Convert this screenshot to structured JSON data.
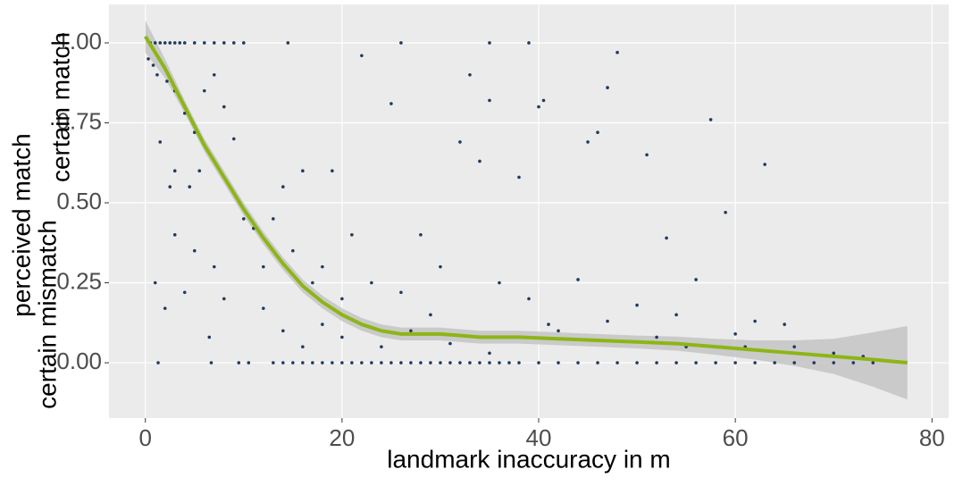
{
  "chart_data": {
    "type": "scatter",
    "x_label": "landmark inaccuracy in m",
    "y_label": "perceived match",
    "y_annotations": [
      "certain match",
      "certain mismatch"
    ],
    "color": "#1f3a5c",
    "xlim": [
      -3.7,
      81.7
    ],
    "ylim": [
      -0.173,
      1.12
    ],
    "xticks": [
      0,
      20,
      40,
      60,
      80
    ],
    "yticks": [
      {
        "value": 0,
        "label": "0.00"
      },
      {
        "value": 0.25,
        "label": "0.25"
      },
      {
        "value": 0.5,
        "label": "0.50"
      },
      {
        "value": 0.75,
        "label": "0.75"
      },
      {
        "value": 1,
        "label": "1.00"
      }
    ],
    "grid": true,
    "x": [
      1.3,
      6.7,
      9.5,
      10.5,
      13,
      14,
      15,
      16,
      17,
      18,
      19,
      20,
      21,
      22,
      23,
      24,
      25,
      26,
      27,
      28,
      29,
      30,
      31,
      32,
      33,
      34,
      35,
      36,
      37,
      38,
      40,
      42,
      44,
      46,
      48,
      50,
      52,
      54,
      56,
      58,
      60,
      62,
      64,
      66,
      68,
      70,
      72,
      74,
      0.5,
      1,
      1.5,
      2,
      2.5,
      3,
      3.5,
      4,
      5,
      6,
      7,
      8,
      9,
      10,
      14.5,
      26,
      35,
      39,
      0.3,
      0.8,
      1.2,
      2.2,
      3,
      4,
      5,
      5.5,
      6,
      7,
      8,
      9,
      3,
      4.5,
      2.5,
      5,
      7,
      8,
      6.5,
      10,
      11,
      12,
      13,
      14,
      15,
      16,
      17,
      18,
      19,
      20,
      21,
      22,
      23,
      25,
      26,
      28,
      29,
      30,
      32,
      33,
      34,
      35,
      36,
      38,
      39,
      40,
      40.5,
      42,
      44,
      45,
      46,
      47,
      48,
      50,
      51,
      53,
      54,
      56,
      57.5,
      59,
      61,
      62,
      63,
      65,
      1,
      1.5,
      2,
      4,
      3,
      12,
      14,
      16,
      18,
      20,
      24,
      27,
      31,
      35,
      41,
      47,
      52,
      55,
      60,
      66,
      70,
      73
    ],
    "values": [
      0,
      0,
      0,
      0,
      0,
      0,
      0,
      0,
      0,
      0,
      0,
      0,
      0,
      0,
      0,
      0,
      0,
      0,
      0,
      0,
      0,
      0,
      0,
      0,
      0,
      0,
      0,
      0,
      0,
      0,
      0,
      0,
      0,
      0,
      0,
      0,
      0,
      0,
      0,
      0,
      0,
      0,
      0,
      0,
      0,
      0,
      0,
      0,
      1,
      1,
      1,
      1,
      1,
      1,
      1,
      1,
      1,
      1,
      1,
      1,
      1,
      1,
      1,
      1,
      1,
      1,
      0.95,
      0.93,
      0.9,
      0.88,
      0.85,
      0.78,
      0.72,
      0.6,
      0.85,
      0.9,
      0.8,
      0.7,
      0.6,
      0.55,
      0.55,
      0.35,
      0.3,
      0.2,
      0.08,
      0.45,
      0.42,
      0.3,
      0.45,
      0.55,
      0.35,
      0.6,
      0.25,
      0.3,
      0.6,
      0.2,
      0.4,
      0.96,
      0.25,
      0.81,
      0.22,
      0.4,
      0.15,
      0.3,
      0.69,
      0.9,
      0.63,
      0.82,
      0.25,
      0.58,
      0.2,
      0.8,
      0.82,
      0.1,
      0.26,
      0.69,
      0.72,
      0.86,
      0.97,
      0.18,
      0.65,
      0.39,
      0.15,
      0.26,
      0.76,
      0.47,
      0.05,
      0.13,
      0.62,
      0.12,
      0.25,
      0.69,
      0.17,
      0.22,
      0.4,
      0.17,
      0.1,
      0.05,
      0.12,
      0.08,
      0.05,
      0.1,
      0.06,
      0.03,
      0.12,
      0.13,
      0.08,
      0.05,
      0.09,
      0.05,
      0.03,
      0.02
    ],
    "smooth": {
      "color": "#8db516",
      "band_color": "#c4c4c4",
      "x": [
        0,
        2,
        4,
        6,
        8,
        10,
        12,
        14,
        16,
        18,
        20,
        22,
        24,
        26,
        30,
        34,
        38,
        42,
        46,
        50,
        54,
        58,
        62,
        66,
        70,
        74,
        77.5
      ],
      "values": [
        1.02,
        0.92,
        0.8,
        0.68,
        0.58,
        0.48,
        0.39,
        0.31,
        0.24,
        0.19,
        0.15,
        0.12,
        0.1,
        0.09,
        0.09,
        0.08,
        0.08,
        0.075,
        0.07,
        0.065,
        0.06,
        0.05,
        0.04,
        0.03,
        0.02,
        0.01,
        0
      ],
      "lower": [
        0.97,
        0.89,
        0.78,
        0.66,
        0.56,
        0.46,
        0.37,
        0.29,
        0.22,
        0.17,
        0.13,
        0.1,
        0.08,
        0.07,
        0.07,
        0.06,
        0.06,
        0.055,
        0.05,
        0.045,
        0.038,
        0.025,
        0.01,
        -0.01,
        -0.035,
        -0.075,
        -0.115
      ],
      "upper": [
        1.07,
        0.95,
        0.82,
        0.7,
        0.6,
        0.5,
        0.41,
        0.33,
        0.26,
        0.21,
        0.17,
        0.14,
        0.12,
        0.11,
        0.11,
        0.1,
        0.1,
        0.095,
        0.09,
        0.085,
        0.082,
        0.075,
        0.07,
        0.07,
        0.075,
        0.095,
        0.115
      ]
    }
  }
}
